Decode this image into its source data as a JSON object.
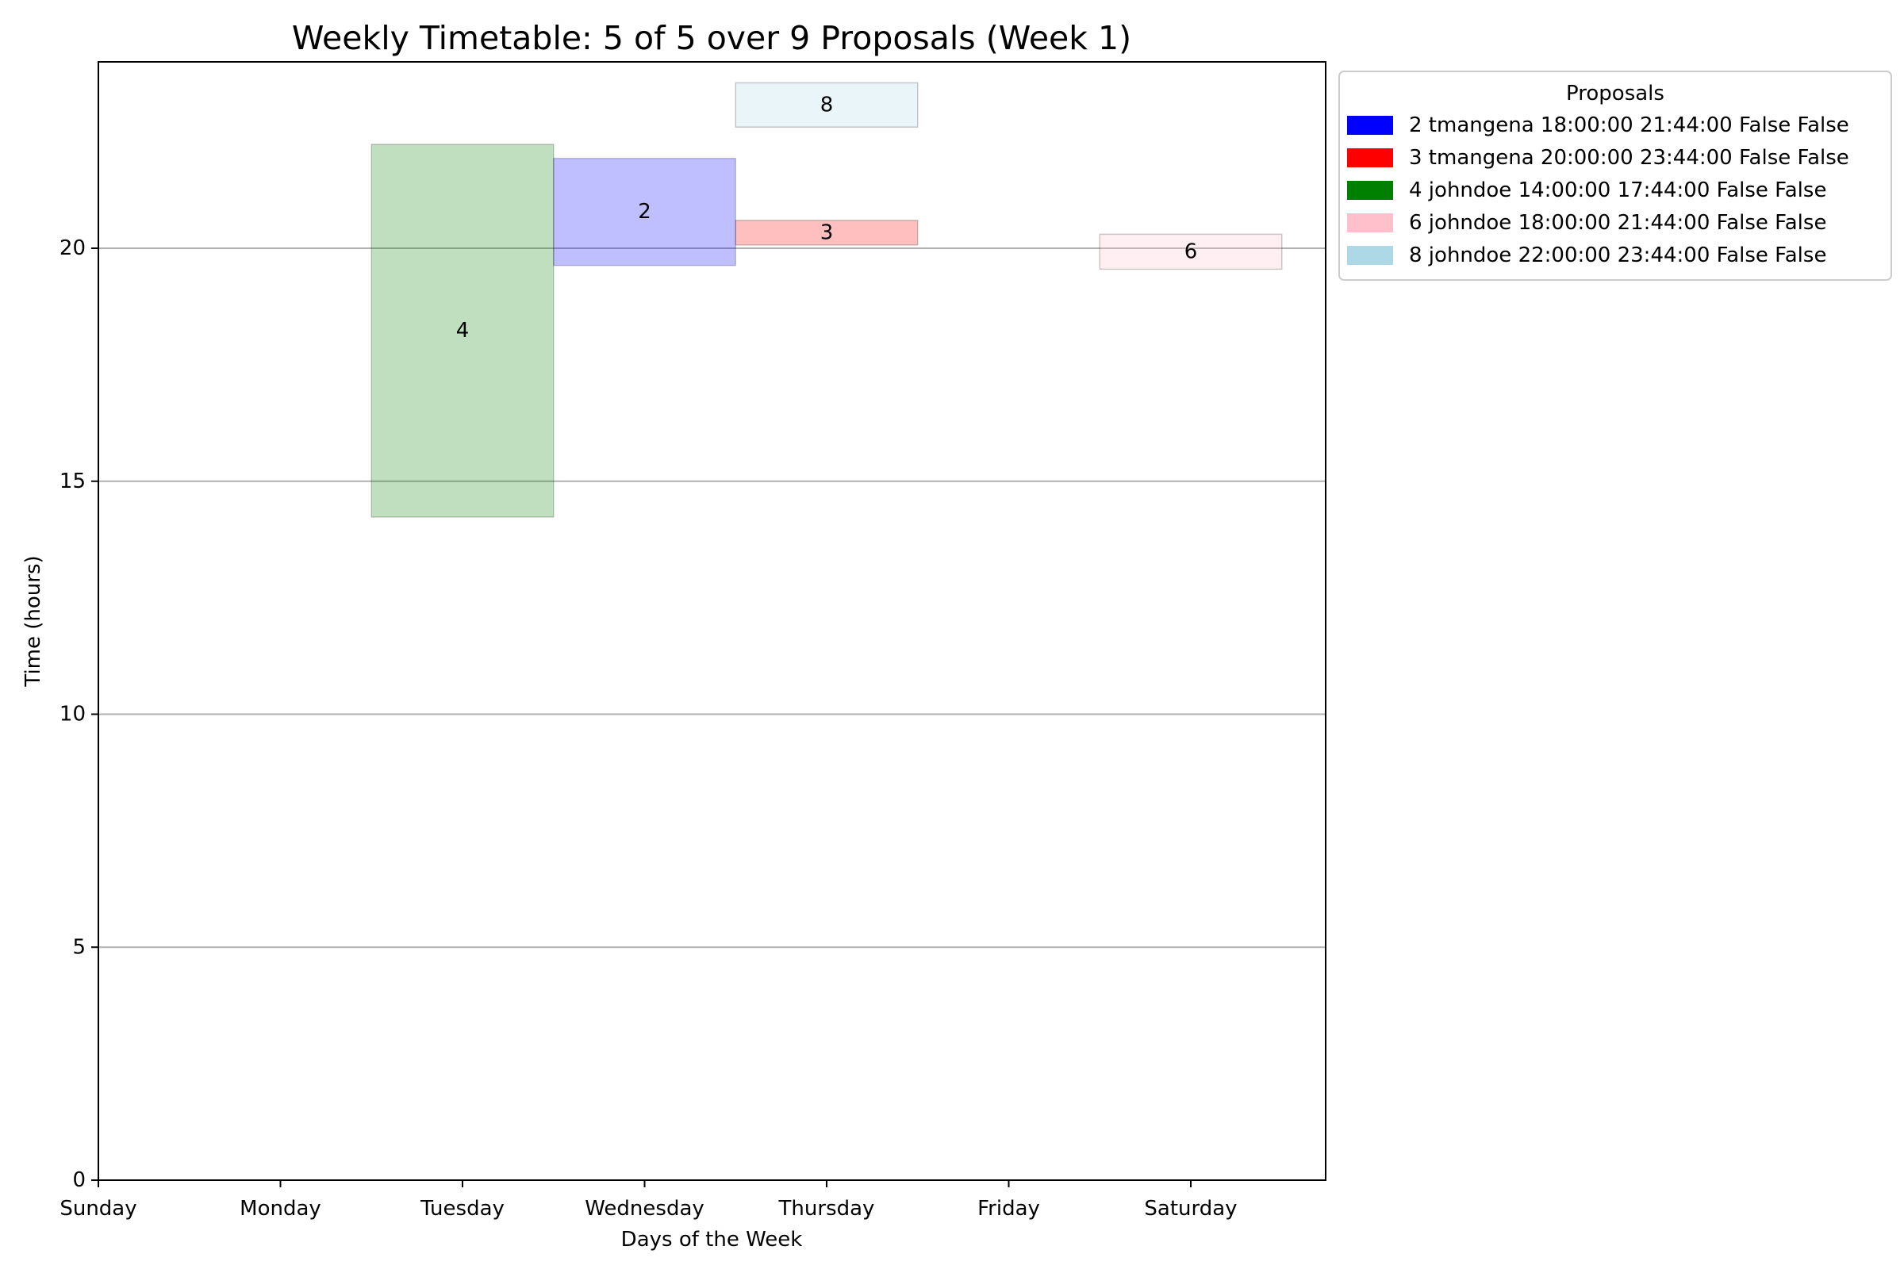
{
  "chart_data": {
    "type": "bar",
    "title": "Weekly Timetable: 5 of 5 over 9 Proposals (Week 1)",
    "xlabel": "Days of the Week",
    "ylabel": "Time (hours)",
    "categories": [
      "Sunday",
      "Monday",
      "Tuesday",
      "Wednesday",
      "Thursday",
      "Friday",
      "Saturday"
    ],
    "ylim": [
      0,
      24
    ],
    "yticks": [
      0,
      5,
      10,
      15,
      20
    ],
    "grid": "y",
    "legend": {
      "title": "Proposals",
      "placement": "outside-upper-right",
      "entries": [
        {
          "label": "2 tmangena 18:00:00 21:44:00 False False",
          "color": "#0000ff"
        },
        {
          "label": "3 tmangena 20:00:00 23:44:00 False False",
          "color": "#ff0000"
        },
        {
          "label": "4 johndoe 14:00:00 17:44:00 False False",
          "color": "#008000"
        },
        {
          "label": "6 johndoe 18:00:00 21:44:00 False False",
          "color": "#ffc0cb"
        },
        {
          "label": "8 johndoe 22:00:00 23:44:00 False False",
          "color": "#add8e6"
        }
      ]
    },
    "bars": [
      {
        "label": "4",
        "day_position": 2,
        "start": 14.23,
        "end": 22.23,
        "color": "#008000",
        "opacity": 0.25
      },
      {
        "label": "2",
        "day_position": 3,
        "start": 19.63,
        "end": 21.93,
        "color": "#0000ff",
        "opacity": 0.25
      },
      {
        "label": "8",
        "day_position": 4,
        "start": 22.6,
        "end": 23.55,
        "color": "#add8e6",
        "opacity": 0.25
      },
      {
        "label": "3",
        "day_position": 4,
        "start": 20.07,
        "end": 20.6,
        "color": "#ff0000",
        "opacity": 0.25
      },
      {
        "label": "6",
        "day_position": 6,
        "start": 19.55,
        "end": 20.3,
        "color": "#ffc0cb",
        "opacity": 0.25
      }
    ]
  }
}
